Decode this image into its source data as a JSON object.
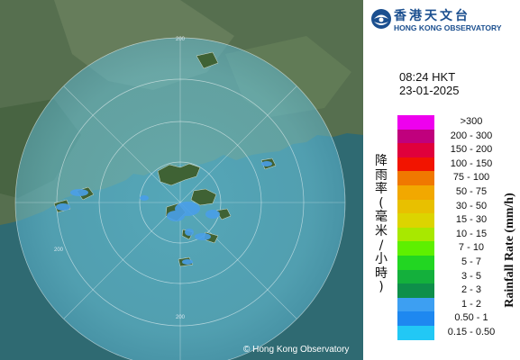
{
  "map": {
    "copyright": "© Hong Kong Observatory",
    "range_ring_label": "200",
    "colors": {
      "sea": "#3e7a7e",
      "land": "#4e6d4c",
      "radar_disc": "#7fd6ea",
      "echo": "#4a9fe8"
    }
  },
  "header": {
    "logo_zh": "香港天文台",
    "logo_en": "HONG KONG OBSERVATORY",
    "logo_icon": "hko-logo-icon"
  },
  "timestamp": {
    "time": "08:24 HKT",
    "date": "23-01-2025"
  },
  "legend": {
    "title_zh": "降雨率(毫米/小時)",
    "title_en": "Rainfall Rate (mm/h)",
    "items": [
      {
        "label": ">300",
        "color": "#ee00ee"
      },
      {
        "label": "200 - 300",
        "color": "#c0007d"
      },
      {
        "label": "150 - 200",
        "color": "#e0003c"
      },
      {
        "label": "100 - 150",
        "color": "#f21400"
      },
      {
        "label": "75 - 100",
        "color": "#f07800"
      },
      {
        "label": "50 - 75",
        "color": "#f2a800"
      },
      {
        "label": "30 - 50",
        "color": "#e8c000"
      },
      {
        "label": "15 - 30",
        "color": "#dcd400"
      },
      {
        "label": "10 - 15",
        "color": "#a8e800"
      },
      {
        "label": "7 - 10",
        "color": "#5ef000"
      },
      {
        "label": "5 - 7",
        "color": "#22d622"
      },
      {
        "label": "3 - 5",
        "color": "#14b03c"
      },
      {
        "label": "2 - 3",
        "color": "#0e8f4a"
      },
      {
        "label": "1 - 2",
        "color": "#3d9ff2"
      },
      {
        "label": "0.50 - 1",
        "color": "#1e88f0"
      },
      {
        "label": "0.15 - 0.50",
        "color": "#22c8f5"
      }
    ]
  }
}
